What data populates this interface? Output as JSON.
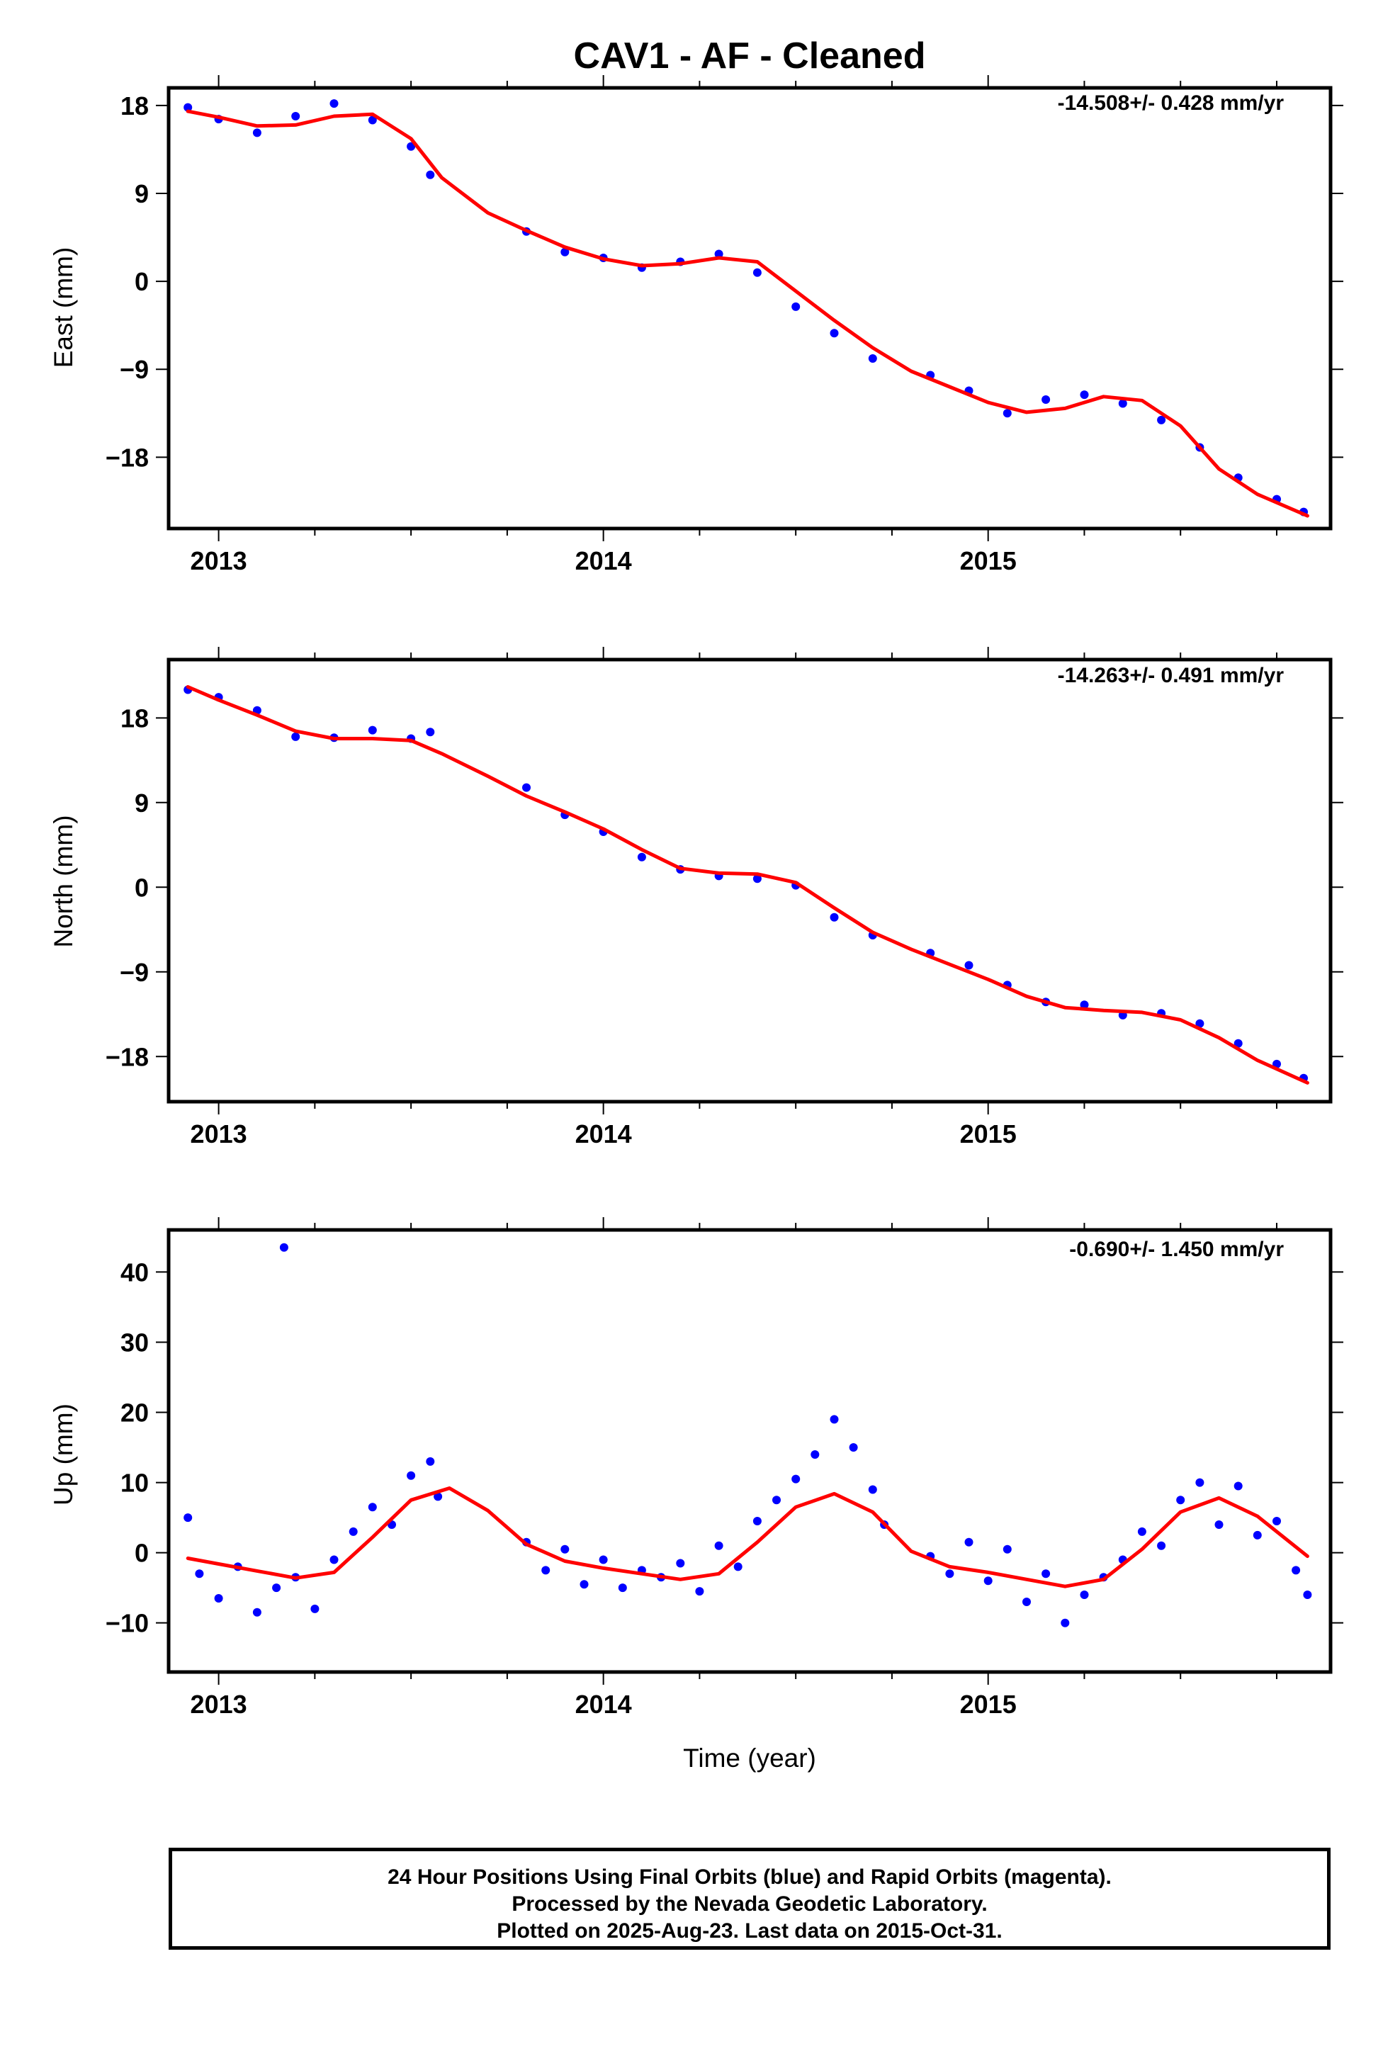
{
  "title": "CAV1  - AF - Cleaned",
  "xlabel": "Time (year)",
  "caption": [
    "24 Hour Positions Using Final Orbits (blue) and Rapid Orbits (magenta).",
    "Processed by the Nevada Geodetic Laboratory.",
    "Plotted on 2025-Aug-23. Last data on 2015-Oct-31."
  ],
  "colors": {
    "points": "#0000ff",
    "model": "#ff0000",
    "axes": "#000000"
  },
  "chart_data": [
    {
      "type": "scatter",
      "component": "East",
      "ylabel": "East (mm)",
      "rate_label": "-14.508+/- 0.428 mm/yr",
      "xlim": [
        2012.87,
        2015.89
      ],
      "ylim": [
        -25.3,
        19.8
      ],
      "xticks": [
        2013,
        2014,
        2015
      ],
      "yticks": [
        18,
        9,
        0,
        -9,
        -18
      ],
      "ytick_labels": [
        "18",
        "9",
        "0",
        "−9",
        "−18"
      ],
      "x": [
        2012.92,
        2013.0,
        2013.1,
        2013.2,
        2013.3,
        2013.4,
        2013.5,
        2013.58,
        2013.7,
        2013.8,
        2013.9,
        2014.0,
        2014.1,
        2014.2,
        2014.3,
        2014.4,
        2014.5,
        2014.6,
        2014.7,
        2014.8,
        2014.9,
        2015.0,
        2015.1,
        2015.2,
        2015.3,
        2015.4,
        2015.5,
        2015.6,
        2015.7,
        2015.83
      ],
      "model": [
        17.4,
        16.8,
        15.9,
        16.0,
        16.9,
        17.1,
        14.6,
        10.6,
        7.0,
        5.2,
        3.5,
        2.3,
        1.6,
        1.8,
        2.4,
        2.0,
        -1.0,
        -4.0,
        -6.8,
        -9.2,
        -10.8,
        -12.4,
        -13.4,
        -13.0,
        -11.8,
        -12.2,
        -14.8,
        -19.2,
        -21.8,
        -24.0
      ],
      "points_note": "",
      "points": [
        [
          2012.92,
          17.8
        ],
        [
          2013.0,
          16.6
        ],
        [
          2013.1,
          15.2
        ],
        [
          2013.2,
          16.9
        ],
        [
          2013.3,
          18.2
        ],
        [
          2013.4,
          16.5
        ],
        [
          2013.5,
          13.8
        ],
        [
          2013.55,
          10.9
        ],
        [
          2013.8,
          5.1
        ],
        [
          2013.9,
          3.0
        ],
        [
          2014.0,
          2.4
        ],
        [
          2014.1,
          1.4
        ],
        [
          2014.2,
          2.0
        ],
        [
          2014.3,
          2.8
        ],
        [
          2014.4,
          0.9
        ],
        [
          2014.5,
          -2.6
        ],
        [
          2014.6,
          -5.3
        ],
        [
          2014.7,
          -7.9
        ],
        [
          2014.85,
          -9.6
        ],
        [
          2014.95,
          -11.2
        ],
        [
          2015.05,
          -13.5
        ],
        [
          2015.15,
          -12.1
        ],
        [
          2015.25,
          -11.6
        ],
        [
          2015.35,
          -12.5
        ],
        [
          2015.45,
          -14.2
        ],
        [
          2015.55,
          -17.0
        ],
        [
          2015.65,
          -20.1
        ],
        [
          2015.75,
          -22.3
        ],
        [
          2015.82,
          -23.6
        ]
      ]
    },
    {
      "type": "scatter",
      "component": "North",
      "ylabel": "North (mm)",
      "rate_label": "-14.263+/- 0.491 mm/yr",
      "xlim": [
        2012.87,
        2015.89
      ],
      "ylim": [
        -22.8,
        24.2
      ],
      "xticks": [
        2013,
        2014,
        2015
      ],
      "yticks": [
        18,
        9,
        0,
        -9,
        -18
      ],
      "ytick_labels": [
        "18",
        "9",
        "0",
        "−9",
        "−18"
      ],
      "x": [
        2012.92,
        2013.0,
        2013.1,
        2013.2,
        2013.3,
        2013.4,
        2013.5,
        2013.58,
        2013.7,
        2013.8,
        2013.9,
        2014.0,
        2014.1,
        2014.2,
        2014.3,
        2014.4,
        2014.5,
        2014.6,
        2014.7,
        2014.8,
        2014.9,
        2015.0,
        2015.1,
        2015.2,
        2015.3,
        2015.4,
        2015.5,
        2015.6,
        2015.7,
        2015.83
      ],
      "model": [
        21.3,
        19.9,
        18.3,
        16.6,
        15.8,
        15.8,
        15.6,
        14.2,
        11.8,
        9.7,
        8.0,
        6.2,
        4.0,
        2.0,
        1.5,
        1.4,
        0.5,
        -2.2,
        -4.8,
        -6.6,
        -8.2,
        -9.8,
        -11.6,
        -12.8,
        -13.1,
        -13.3,
        -14.1,
        -16.0,
        -18.4,
        -20.8
      ],
      "points": [
        [
          2012.92,
          21.0
        ],
        [
          2013.0,
          20.2
        ],
        [
          2013.1,
          18.8
        ],
        [
          2013.2,
          16.0
        ],
        [
          2013.3,
          15.9
        ],
        [
          2013.4,
          16.7
        ],
        [
          2013.5,
          15.8
        ],
        [
          2013.55,
          16.5
        ],
        [
          2013.8,
          10.6
        ],
        [
          2013.9,
          7.7
        ],
        [
          2014.0,
          5.9
        ],
        [
          2014.1,
          3.2
        ],
        [
          2014.2,
          1.9
        ],
        [
          2014.3,
          1.2
        ],
        [
          2014.4,
          0.9
        ],
        [
          2014.5,
          0.2
        ],
        [
          2014.6,
          -3.2
        ],
        [
          2014.7,
          -5.1
        ],
        [
          2014.85,
          -7.0
        ],
        [
          2014.95,
          -8.3
        ],
        [
          2015.05,
          -10.4
        ],
        [
          2015.15,
          -12.2
        ],
        [
          2015.25,
          -12.5
        ],
        [
          2015.35,
          -13.6
        ],
        [
          2015.45,
          -13.4
        ],
        [
          2015.55,
          -14.5
        ],
        [
          2015.65,
          -16.6
        ],
        [
          2015.75,
          -18.8
        ],
        [
          2015.82,
          -20.3
        ]
      ]
    },
    {
      "type": "scatter",
      "component": "Up",
      "ylabel": "Up (mm)",
      "rate_label": "-0.690+/- 1.450 mm/yr",
      "xlim": [
        2012.87,
        2015.89
      ],
      "ylim": [
        -17.0,
        46.0
      ],
      "xticks": [
        2013,
        2014,
        2015
      ],
      "yticks": [
        40,
        30,
        20,
        10,
        0,
        -10
      ],
      "ytick_labels": [
        "40",
        "30",
        "20",
        "10",
        "0",
        "−10"
      ],
      "x": [
        2012.92,
        2013.0,
        2013.1,
        2013.2,
        2013.3,
        2013.4,
        2013.5,
        2013.6,
        2013.7,
        2013.8,
        2013.9,
        2014.0,
        2014.1,
        2014.2,
        2014.3,
        2014.4,
        2014.5,
        2014.6,
        2014.7,
        2014.8,
        2014.9,
        2015.0,
        2015.1,
        2015.2,
        2015.3,
        2015.4,
        2015.5,
        2015.6,
        2015.7,
        2015.83
      ],
      "model": [
        -0.8,
        -1.6,
        -2.6,
        -3.6,
        -2.8,
        2.2,
        7.5,
        9.2,
        6.0,
        1.2,
        -1.2,
        -2.2,
        -3.0,
        -3.8,
        -3.0,
        1.5,
        6.5,
        8.4,
        5.8,
        0.2,
        -2.0,
        -2.8,
        -3.8,
        -4.8,
        -3.8,
        0.5,
        5.8,
        7.8,
        5.2,
        -0.5
      ],
      "points": [
        [
          2012.92,
          5.0
        ],
        [
          2012.95,
          -3.0
        ],
        [
          2013.0,
          -6.5
        ],
        [
          2013.05,
          -2.0
        ],
        [
          2013.1,
          -8.5
        ],
        [
          2013.15,
          -5.0
        ],
        [
          2013.17,
          43.5
        ],
        [
          2013.2,
          -3.5
        ],
        [
          2013.25,
          -8.0
        ],
        [
          2013.3,
          -1.0
        ],
        [
          2013.35,
          3.0
        ],
        [
          2013.4,
          6.5
        ],
        [
          2013.45,
          4.0
        ],
        [
          2013.5,
          11.0
        ],
        [
          2013.55,
          13.0
        ],
        [
          2013.57,
          8.0
        ],
        [
          2013.8,
          1.5
        ],
        [
          2013.85,
          -2.5
        ],
        [
          2013.9,
          0.5
        ],
        [
          2013.95,
          -4.5
        ],
        [
          2014.0,
          -1.0
        ],
        [
          2014.05,
          -5.0
        ],
        [
          2014.1,
          -2.5
        ],
        [
          2014.15,
          -3.5
        ],
        [
          2014.2,
          -1.5
        ],
        [
          2014.25,
          -5.5
        ],
        [
          2014.3,
          1.0
        ],
        [
          2014.35,
          -2.0
        ],
        [
          2014.4,
          4.5
        ],
        [
          2014.45,
          7.5
        ],
        [
          2014.5,
          10.5
        ],
        [
          2014.55,
          14.0
        ],
        [
          2014.6,
          19.0
        ],
        [
          2014.65,
          15.0
        ],
        [
          2014.7,
          9.0
        ],
        [
          2014.73,
          4.0
        ],
        [
          2014.85,
          -0.5
        ],
        [
          2014.9,
          -3.0
        ],
        [
          2014.95,
          1.5
        ],
        [
          2015.0,
          -4.0
        ],
        [
          2015.05,
          0.5
        ],
        [
          2015.1,
          -7.0
        ],
        [
          2015.15,
          -3.0
        ],
        [
          2015.2,
          -10.0
        ],
        [
          2015.25,
          -6.0
        ],
        [
          2015.3,
          -3.5
        ],
        [
          2015.35,
          -1.0
        ],
        [
          2015.4,
          3.0
        ],
        [
          2015.45,
          1.0
        ],
        [
          2015.5,
          7.5
        ],
        [
          2015.55,
          10.0
        ],
        [
          2015.6,
          4.0
        ],
        [
          2015.65,
          9.5
        ],
        [
          2015.7,
          2.5
        ],
        [
          2015.75,
          4.5
        ],
        [
          2015.8,
          -2.5
        ],
        [
          2015.83,
          -6.0
        ]
      ]
    }
  ]
}
